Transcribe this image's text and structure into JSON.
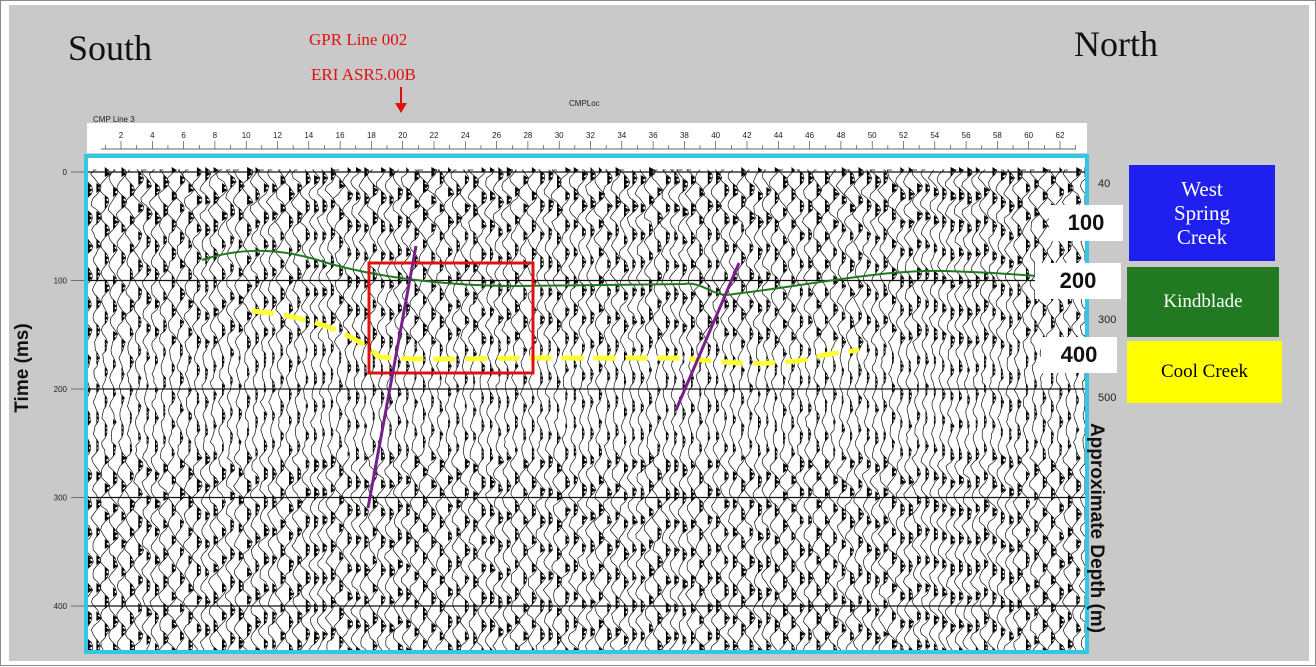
{
  "header": {
    "left_direction": "South",
    "right_direction": "North",
    "annotation_line1": "GPR Line 002",
    "annotation_line2": "ERI ASR5.00B"
  },
  "section": {
    "title": "CMPLoc",
    "line_label": "CMP Line 3",
    "cmp_ticks": [
      "2",
      "4",
      "6",
      "8",
      "10",
      "12",
      "14",
      "16",
      "18",
      "20",
      "22",
      "24",
      "26",
      "28",
      "30",
      "32",
      "34",
      "36",
      "38",
      "40",
      "42",
      "44",
      "46",
      "48",
      "50",
      "52",
      "54",
      "56",
      "58",
      "60",
      "62"
    ],
    "time_axis_label": "Time (ms)",
    "time_ticks": [
      "0",
      "100",
      "200",
      "300",
      "400"
    ],
    "depth_axis_label": "Approximate Depth (m)",
    "depth_ticks_small": [
      "40",
      "300",
      "500"
    ],
    "depth_markers": [
      "100",
      "200",
      "400"
    ]
  },
  "layers": [
    {
      "name": "West Spring Creek",
      "color": "#1f1ff0",
      "text_color": "#ffffff"
    },
    {
      "name": "Kindblade",
      "color": "#217a21",
      "text_color": "#ffffff"
    },
    {
      "name": "Cool Creek",
      "color": "#ffff00",
      "text_color": "#000000"
    }
  ],
  "overlay_colors": {
    "frame": "#33c7e6",
    "horizon_kindblade": "#1f7a1f",
    "horizon_cool_creek": "#ffff33",
    "faults": "#7a1f8a",
    "highlight_box": "#e01010",
    "annotation_arrow": "#e01010"
  }
}
